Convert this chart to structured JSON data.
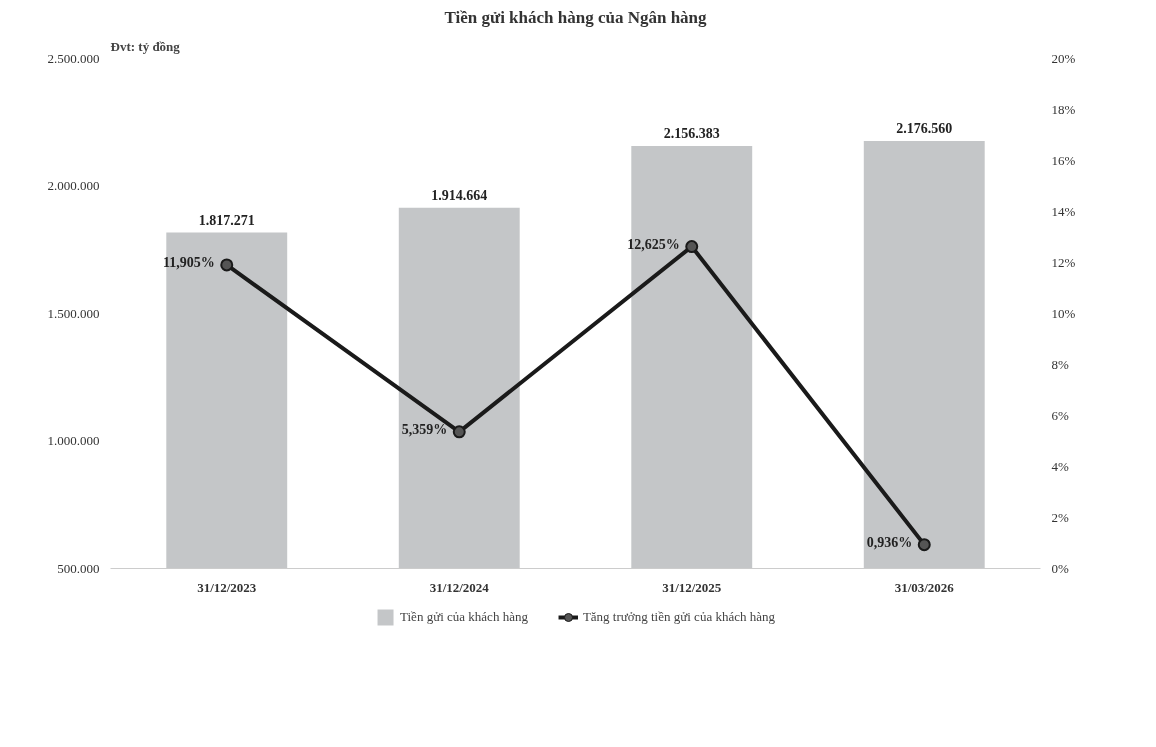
{
  "chart_data": {
    "type": "bar",
    "title": "Tiền gửi khách hàng của Ngân hàng",
    "annotations": [
      "Đvt: tỷ đồng"
    ],
    "categories": [
      "31/12/2023",
      "31/12/2024",
      "31/12/2025",
      "31/03/2026"
    ],
    "series": [
      {
        "name": "Tiền gửi của khách hàng",
        "color": "#c4c6c8",
        "values": [
          1817271,
          1914664,
          2156383,
          2176560
        ],
        "value_labels": [
          "1.817.271",
          "1.914.664",
          "2.156.383",
          "2.176.560"
        ]
      },
      {
        "name": "Tăng trưởng tiền gửi của khách hàng",
        "type": "line",
        "axis": "y2",
        "color": "#1a1a1a",
        "marker": "circle",
        "values": [
          11.905,
          5.359,
          12.625,
          0.936
        ],
        "value_labels": [
          "11,905%",
          "5,359%",
          "12,625%",
          "0,936%"
        ]
      }
    ],
    "ylim": [
      500000,
      2500000
    ],
    "yticks": [
      {
        "value": 500000,
        "label": "500.000"
      },
      {
        "value": 1000000,
        "label": "1.000.000"
      },
      {
        "value": 1500000,
        "label": "1.500.000"
      },
      {
        "value": 2000000,
        "label": "2.000.000"
      },
      {
        "value": 2500000,
        "label": "2.500.000"
      }
    ],
    "y2lim": [
      0,
      20
    ],
    "y2ticks": [
      {
        "value": 0,
        "label": "0%"
      },
      {
        "value": 2,
        "label": "2%"
      },
      {
        "value": 4,
        "label": "4%"
      },
      {
        "value": 6,
        "label": "6%"
      },
      {
        "value": 8,
        "label": "8%"
      },
      {
        "value": 10,
        "label": "10%"
      },
      {
        "value": 12,
        "label": "12%"
      },
      {
        "value": 14,
        "label": "14%"
      },
      {
        "value": 16,
        "label": "16%"
      },
      {
        "value": 18,
        "label": "18%"
      },
      {
        "value": 20,
        "label": "20%"
      }
    ],
    "grid": false,
    "legend": "bottom"
  }
}
